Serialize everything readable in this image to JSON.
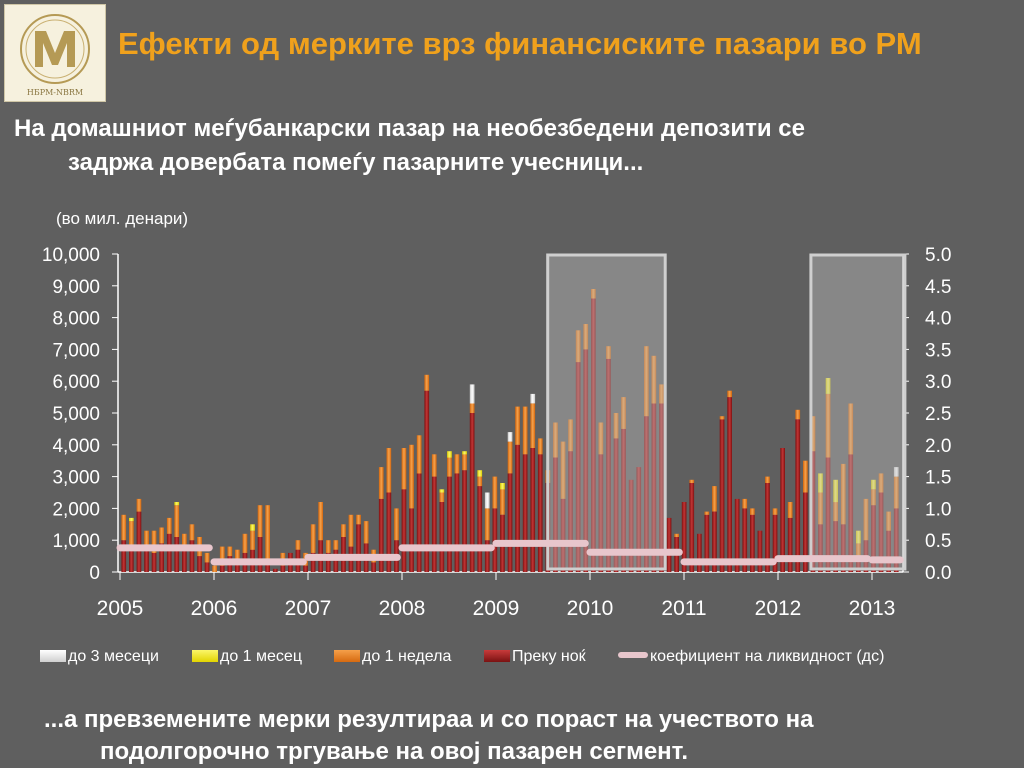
{
  "header": {
    "logo_text": "НБРМ-NBRM",
    "title": "Ефекти од мерките врз финансиските пазари во РМ"
  },
  "subtitle": {
    "line1": "На домашниот меѓубанкарски пазар на необезбедени депозити се",
    "line2": "задржа довербата помеѓу пазарните учесници..."
  },
  "footer_note": {
    "line1": "...а превземените мерки резултираа и со пораст на учеството на",
    "line2": "подолгорочно тргување на овој пазарен сегмент."
  },
  "colors": {
    "background": "#5f5f5f",
    "title": "#f0a11c",
    "overnight": "#9b1c1c",
    "one_week": "#e8801a",
    "one_month": "#f2ea14",
    "three_months": "#e6e6e6",
    "ratio": "#e8c6cc",
    "highlight": "#9a9a9a"
  },
  "chart_data": {
    "type": "bar",
    "stacked": true,
    "unit_note": "(во мил. денари)",
    "ylim": [
      0,
      10000
    ],
    "y_ticks": [
      "0",
      "1,000",
      "2,000",
      "3,000",
      "4,000",
      "5,000",
      "6,000",
      "7,000",
      "8,000",
      "9,000",
      "10,000"
    ],
    "y2lim": [
      0,
      5
    ],
    "y2_ticks": [
      "0.0",
      "0.5",
      "1.0",
      "1.5",
      "2.0",
      "2.5",
      "3.0",
      "3.5",
      "4.0",
      "4.5",
      "5.0"
    ],
    "x_labels": [
      "2005",
      "2006",
      "2007",
      "2008",
      "2009",
      "2010",
      "2011",
      "2012",
      "2013"
    ],
    "x_start_year": 2005,
    "highlight_years": [
      [
        2009.55,
        2010.8
      ],
      [
        2012.35,
        2013.35
      ]
    ],
    "series": [
      {
        "name": "до 3 месеци",
        "key": "m3",
        "color": "#e6e6e6"
      },
      {
        "name": "до 1 месец",
        "key": "m1",
        "color": "#f2ea14"
      },
      {
        "name": "до 1 недела",
        "key": "w1",
        "color": "#e8801a"
      },
      {
        "name": "Преку ноќ",
        "key": "on",
        "color": "#9b1c1c"
      },
      {
        "name": "коефициент на ликвидност (дс)",
        "key": "ratio",
        "color": "#e8c6cc",
        "axis": "right"
      }
    ],
    "bars": {
      "on": [
        1000,
        800,
        1900,
        700,
        600,
        900,
        1200,
        1100,
        700,
        1000,
        500,
        300,
        0,
        200,
        500,
        400,
        600,
        700,
        1100,
        300,
        100,
        200,
        600,
        700,
        200,
        600,
        1000,
        600,
        700,
        1100,
        800,
        1500,
        900,
        300,
        2300,
        2500,
        1000,
        2600,
        2000,
        3100,
        5700,
        3000,
        2200,
        3000,
        3100,
        3200,
        5000,
        2700,
        1000,
        2000,
        1800,
        3100,
        4000,
        3700,
        3900,
        3700,
        2800,
        3600,
        2300,
        3800,
        6600,
        7000,
        8600,
        3700,
        6700,
        4200,
        4500,
        2900,
        3300,
        4900,
        5300,
        5300,
        1700,
        1100,
        2200,
        2800,
        1200,
        1800,
        1900,
        4800,
        5500,
        2300,
        2000,
        1800,
        1300,
        2800,
        1800,
        3900,
        1700,
        4800,
        2500,
        3800,
        1500,
        3600,
        1600,
        1500,
        3700,
        500,
        1000,
        2100,
        2500,
        1300,
        2000
      ],
      "w1": [
        800,
        800,
        400,
        600,
        700,
        500,
        500,
        1000,
        500,
        500,
        600,
        300,
        200,
        600,
        300,
        300,
        600,
        600,
        1000,
        1800,
        0,
        400,
        0,
        300,
        400,
        900,
        1200,
        400,
        300,
        400,
        1000,
        300,
        700,
        400,
        1000,
        1400,
        1000,
        1300,
        2000,
        1200,
        500,
        700,
        300,
        600,
        600,
        500,
        300,
        300,
        1000,
        1000,
        800,
        1000,
        1200,
        1500,
        1400,
        500,
        400,
        1100,
        1800,
        1000,
        1000,
        800,
        300,
        1000,
        400,
        800,
        1000,
        0,
        0,
        2200,
        1500,
        600,
        0,
        100,
        0,
        100,
        0,
        100,
        800,
        100,
        200,
        0,
        300,
        200,
        0,
        200,
        200,
        0,
        500,
        300,
        1000,
        1100,
        1000,
        2000,
        600,
        1900,
        1600,
        400,
        1300,
        500,
        600,
        600,
        1000
      ],
      "m1": [
        0,
        100,
        0,
        0,
        0,
        0,
        0,
        100,
        0,
        0,
        0,
        0,
        0,
        0,
        0,
        0,
        0,
        200,
        0,
        0,
        0,
        0,
        0,
        0,
        0,
        0,
        0,
        0,
        0,
        0,
        0,
        0,
        0,
        0,
        0,
        0,
        0,
        0,
        0,
        0,
        0,
        0,
        100,
        200,
        0,
        100,
        0,
        200,
        0,
        0,
        200,
        0,
        0,
        0,
        0,
        0,
        0,
        0,
        0,
        0,
        0,
        0,
        0,
        0,
        0,
        0,
        0,
        0,
        0,
        0,
        0,
        0,
        0,
        0,
        0,
        0,
        0,
        0,
        0,
        0,
        0,
        0,
        0,
        0,
        0,
        0,
        0,
        0,
        0,
        0,
        0,
        0,
        600,
        500,
        700,
        0,
        0,
        400,
        0,
        300,
        0,
        0,
        0,
        0,
        0
      ],
      "m3": [
        0,
        0,
        0,
        0,
        0,
        0,
        0,
        0,
        0,
        0,
        0,
        0,
        0,
        0,
        0,
        0,
        0,
        0,
        0,
        0,
        0,
        0,
        0,
        0,
        0,
        0,
        0,
        0,
        0,
        0,
        0,
        0,
        0,
        0,
        0,
        0,
        0,
        0,
        0,
        0,
        0,
        0,
        0,
        0,
        0,
        0,
        600,
        0,
        500,
        0,
        0,
        300,
        0,
        0,
        300,
        0,
        0,
        0,
        0,
        0,
        0,
        0,
        0,
        0,
        0,
        0,
        0,
        0,
        0,
        0,
        0,
        0,
        0,
        0,
        0,
        0,
        0,
        0,
        0,
        0,
        0,
        0,
        0,
        0,
        0,
        0,
        0,
        0,
        0,
        0,
        0,
        0,
        0,
        0,
        0,
        0,
        0,
        0,
        0,
        0,
        0,
        0,
        300,
        0,
        300
      ]
    },
    "ratio_segments": [
      {
        "from": 2005.0,
        "to": 2005.95,
        "value": 0.38
      },
      {
        "from": 2006.0,
        "to": 2006.95,
        "value": 0.16
      },
      {
        "from": 2007.0,
        "to": 2007.95,
        "value": 0.23
      },
      {
        "from": 2008.0,
        "to": 2008.95,
        "value": 0.38
      },
      {
        "from": 2009.0,
        "to": 2009.95,
        "value": 0.45
      },
      {
        "from": 2010.0,
        "to": 2010.95,
        "value": 0.31
      },
      {
        "from": 2011.0,
        "to": 2011.95,
        "value": 0.16
      },
      {
        "from": 2012.0,
        "to": 2012.95,
        "value": 0.21
      },
      {
        "from": 2013.0,
        "to": 2013.3,
        "value": 0.19
      }
    ]
  }
}
